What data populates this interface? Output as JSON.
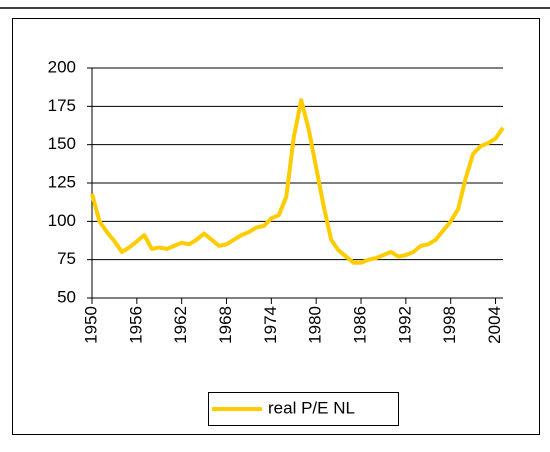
{
  "chart_data": {
    "type": "line",
    "x": [
      1950,
      1951,
      1952,
      1953,
      1954,
      1955,
      1956,
      1957,
      1958,
      1959,
      1960,
      1961,
      1962,
      1963,
      1964,
      1965,
      1966,
      1967,
      1968,
      1969,
      1970,
      1971,
      1972,
      1973,
      1974,
      1975,
      1976,
      1977,
      1978,
      1979,
      1980,
      1981,
      1982,
      1983,
      1984,
      1985,
      1986,
      1987,
      1988,
      1989,
      1990,
      1991,
      1992,
      1993,
      1994,
      1995,
      1996,
      1997,
      1998,
      1999,
      2000,
      2001,
      2002,
      2003,
      2004,
      2005
    ],
    "series": [
      {
        "name": "real P/E NL",
        "color": "#ffcc00",
        "values": [
          118,
          100,
          93,
          87,
          80,
          83,
          87,
          91,
          82,
          83,
          82,
          84,
          86,
          85,
          88,
          92,
          88,
          84,
          85,
          88,
          91,
          93,
          96,
          97,
          102,
          104,
          116,
          155,
          179,
          160,
          135,
          110,
          88,
          81,
          77,
          73,
          73,
          75,
          76,
          78,
          80,
          77,
          78,
          80,
          84,
          85,
          88,
          94,
          100,
          108,
          128,
          144,
          149,
          151,
          154,
          161
        ]
      }
    ],
    "xlim": [
      1950,
      2005
    ],
    "xticks": [
      1950,
      1956,
      1962,
      1968,
      1974,
      1980,
      1986,
      1992,
      1998,
      2004
    ],
    "ylim": [
      50,
      200
    ],
    "yticks": [
      50,
      75,
      100,
      125,
      150,
      175,
      200
    ],
    "grid": true,
    "legend": "bottom"
  }
}
